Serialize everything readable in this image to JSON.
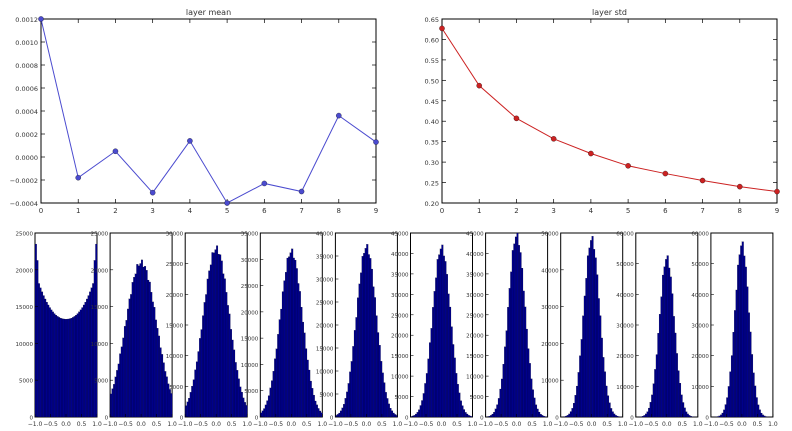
{
  "chart_data": [
    {
      "type": "line",
      "title": "layer mean",
      "xlabel": "",
      "ylabel": "",
      "x": [
        0,
        1,
        2,
        3,
        4,
        5,
        6,
        7,
        8,
        9
      ],
      "series": [
        {
          "values": [
            0.0012,
            -0.00018,
            5e-05,
            -0.00031,
            0.00014,
            -0.0004,
            -0.00023,
            -0.0003,
            0.00036,
            0.00013
          ]
        }
      ],
      "xlim": [
        0,
        9
      ],
      "ylim": [
        -0.0004,
        0.0012
      ],
      "xticks": [
        "0",
        "1",
        "2",
        "3",
        "4",
        "5",
        "6",
        "7",
        "8",
        "9"
      ],
      "yticks": [
        "−0.0004",
        "−0.0002",
        "0.0000",
        "0.0002",
        "0.0004",
        "0.0006",
        "0.0008",
        "0.0010",
        "0.0012"
      ],
      "color": "#4b4bcf",
      "grid": false
    },
    {
      "type": "line",
      "title": "layer std",
      "xlabel": "",
      "ylabel": "",
      "x": [
        0,
        1,
        2,
        3,
        4,
        5,
        6,
        7,
        8,
        9
      ],
      "series": [
        {
          "values": [
            0.627,
            0.487,
            0.407,
            0.357,
            0.321,
            0.291,
            0.272,
            0.255,
            0.24,
            0.228
          ]
        }
      ],
      "xlim": [
        0,
        9
      ],
      "ylim": [
        0.2,
        0.65
      ],
      "xticks": [
        "0",
        "1",
        "2",
        "3",
        "4",
        "5",
        "6",
        "7",
        "8",
        "9"
      ],
      "yticks": [
        "0.20",
        "0.25",
        "0.30",
        "0.35",
        "0.40",
        "0.45",
        "0.50",
        "0.55",
        "0.60",
        "0.65"
      ],
      "color": "#cc2222",
      "grid": false
    },
    {
      "type": "histogram_grid",
      "color": "#00008b",
      "xlim": [
        -1.0,
        1.0
      ],
      "xticks": [
        "−1.0",
        "−0.5",
        "0.0",
        "0.5",
        "1.0"
      ],
      "panels": [
        {
          "ymax": 25000,
          "yticks": [
            "0",
            "5000",
            "10000",
            "15000",
            "20000",
            "25000"
          ],
          "shape": "bimodal",
          "peak": 23500,
          "sigma": 0.0
        },
        {
          "ymax": 25000,
          "yticks": [
            "0",
            "5000",
            "10000",
            "15000",
            "20000",
            "25000"
          ],
          "shape": "bell",
          "peak": 21000,
          "sigma": 0.5
        },
        {
          "ymax": 30000,
          "yticks": [
            "0",
            "5000",
            "10000",
            "15000",
            "20000",
            "25000",
            "30000"
          ],
          "shape": "bell",
          "peak": 27500,
          "sigma": 0.42
        },
        {
          "ymax": 35000,
          "yticks": [
            "0",
            "5000",
            "10000",
            "15000",
            "20000",
            "25000",
            "30000",
            "35000"
          ],
          "shape": "bell",
          "peak": 31500,
          "sigma": 0.36
        },
        {
          "ymax": 40000,
          "yticks": [
            "0",
            "5000",
            "10000",
            "15000",
            "20000",
            "25000",
            "30000",
            "35000",
            "40000"
          ],
          "shape": "bell",
          "peak": 37000,
          "sigma": 0.32
        },
        {
          "ymax": 45000,
          "yticks": [
            "0",
            "5000",
            "10000",
            "15000",
            "20000",
            "25000",
            "30000",
            "35000",
            "40000",
            "45000"
          ],
          "shape": "bell",
          "peak": 41500,
          "sigma": 0.29
        },
        {
          "ymax": 45000,
          "yticks": [
            "0",
            "5000",
            "10000",
            "15000",
            "20000",
            "25000",
            "30000",
            "35000",
            "40000",
            "45000"
          ],
          "shape": "bell",
          "peak": 44500,
          "sigma": 0.27
        },
        {
          "ymax": 50000,
          "yticks": [
            "0",
            "10000",
            "20000",
            "30000",
            "40000",
            "50000"
          ],
          "shape": "bell",
          "peak": 48500,
          "sigma": 0.255
        },
        {
          "ymax": 60000,
          "yticks": [
            "0",
            "10000",
            "20000",
            "30000",
            "40000",
            "50000",
            "60000"
          ],
          "shape": "bell",
          "peak": 52000,
          "sigma": 0.24
        },
        {
          "ymax": 60000,
          "yticks": [
            "0",
            "10000",
            "20000",
            "30000",
            "40000",
            "50000",
            "60000"
          ],
          "shape": "bell",
          "peak": 56500,
          "sigma": 0.228
        }
      ]
    }
  ]
}
